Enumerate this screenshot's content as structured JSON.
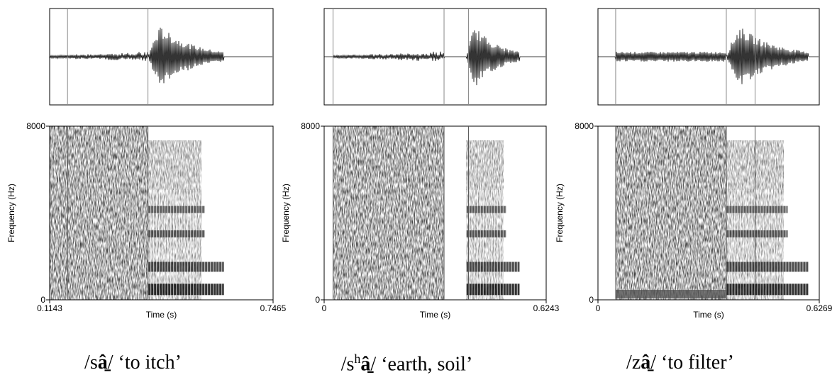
{
  "panels": [
    {
      "y_label": "Frequency (Hz)",
      "y_ticks": [
        "8000",
        "0"
      ],
      "x_ticks": [
        "0.1143",
        "0.7465"
      ],
      "x_label": "Time (s)",
      "caption": {
        "pre": "/s",
        "vowel": "â̱",
        "post": "/ ‘to itch’"
      }
    },
    {
      "y_label": "Frequency (Hz)",
      "y_ticks": [
        "8000",
        "0"
      ],
      "x_ticks": [
        "0",
        "0.6243"
      ],
      "x_label": "Time (s)",
      "caption": {
        "pre": "/s",
        "sup": "h",
        "vowel": "â̱",
        "post": "/ ‘earth, soil’"
      }
    },
    {
      "y_label": "Frequency (Hz)",
      "y_ticks": [
        "8000",
        "0"
      ],
      "x_ticks": [
        "0",
        "0.6269"
      ],
      "x_label": "Time (s)",
      "caption": {
        "pre": "/z",
        "vowel": "â̱",
        "post": "/ ‘to filter’"
      }
    }
  ]
}
